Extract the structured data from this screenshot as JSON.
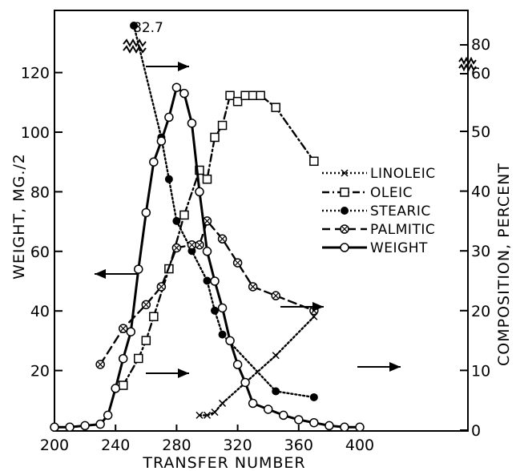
{
  "chart_data": {
    "type": "line",
    "title": "",
    "xlabel": "TRANSFER NUMBER",
    "ylabel_left": "WEIGHT, MG./2",
    "ylabel_right": "COMPOSITION, PERCENT",
    "x_ticks": [
      200,
      240,
      280,
      320,
      360,
      400
    ],
    "x_tick_labels": [
      "200",
      "240",
      "280",
      "320",
      "360",
      "400"
    ],
    "xlim": [
      200,
      460
    ],
    "y_left_ticks": [
      20,
      40,
      60,
      80,
      100,
      120
    ],
    "y_left_tick_labels": [
      "20",
      "40",
      "60",
      "80",
      "100",
      "120"
    ],
    "ylim_left": [
      0,
      140
    ],
    "y_right_ticks": [
      0,
      10,
      20,
      30,
      40,
      50
    ],
    "y_right_tick_labels": [
      "0",
      "10",
      "20",
      "30",
      "40",
      "50"
    ],
    "y_right_break_labels": [
      "60",
      "80"
    ],
    "ylim_right": [
      0,
      70
    ],
    "grid": false,
    "legend_position": "right",
    "annotation": "82.7",
    "series": [
      {
        "name": "LINOLEIC",
        "axis": "right",
        "line_style": "dotted",
        "marker": "x",
        "x": [
          295,
          300,
          305,
          310,
          345,
          370
        ],
        "y": [
          2.5,
          2.5,
          3,
          4.5,
          12.5,
          19
        ]
      },
      {
        "name": "OLEIC",
        "axis": "right",
        "line_style": "dash-dot",
        "marker": "square",
        "x": [
          245,
          255,
          260,
          265,
          275,
          285,
          295,
          300,
          305,
          310,
          315,
          320,
          325,
          330,
          335,
          345,
          370
        ],
        "y": [
          7.5,
          12,
          15,
          19,
          27,
          36,
          43.5,
          42,
          49,
          51,
          56,
          55,
          56,
          56,
          56,
          54,
          45
        ]
      },
      {
        "name": "STEARIC",
        "axis": "right",
        "line_style": "dotted",
        "marker": "filled-circle",
        "x": [
          270,
          275,
          280,
          290,
          300,
          305,
          310,
          345,
          370
        ],
        "y": [
          49,
          42,
          35,
          30,
          25,
          20,
          16,
          6.5,
          5.5
        ]
      },
      {
        "name": "PALMITIC",
        "axis": "right",
        "line_style": "dashed",
        "marker": "circle-x",
        "x": [
          230,
          245,
          260,
          270,
          280,
          290,
          295,
          300,
          310,
          320,
          330,
          345,
          370
        ],
        "y": [
          11,
          17,
          21,
          24,
          30.5,
          31,
          31,
          35,
          32,
          28,
          24,
          22.5,
          20
        ]
      },
      {
        "name": "WEIGHT",
        "axis": "left",
        "line_style": "solid",
        "marker": "open-circle",
        "x": [
          200,
          210,
          220,
          230,
          235,
          240,
          245,
          250,
          255,
          260,
          265,
          270,
          275,
          280,
          285,
          290,
          295,
          300,
          305,
          310,
          315,
          320,
          325,
          330,
          340,
          350,
          360,
          370,
          380,
          390,
          400
        ],
        "y": [
          1,
          1,
          1.5,
          2,
          5,
          14,
          24,
          33,
          54,
          73,
          90,
          97,
          105,
          115,
          113,
          103,
          80,
          60,
          50,
          41,
          30,
          22,
          16,
          9,
          7,
          5,
          3.5,
          2.5,
          1.5,
          1,
          1
        ]
      }
    ],
    "stearic_off_scale_point": {
      "x": 252,
      "y": 82.7
    },
    "right_series_extra_note": "right-axis break between 50 and 60"
  }
}
